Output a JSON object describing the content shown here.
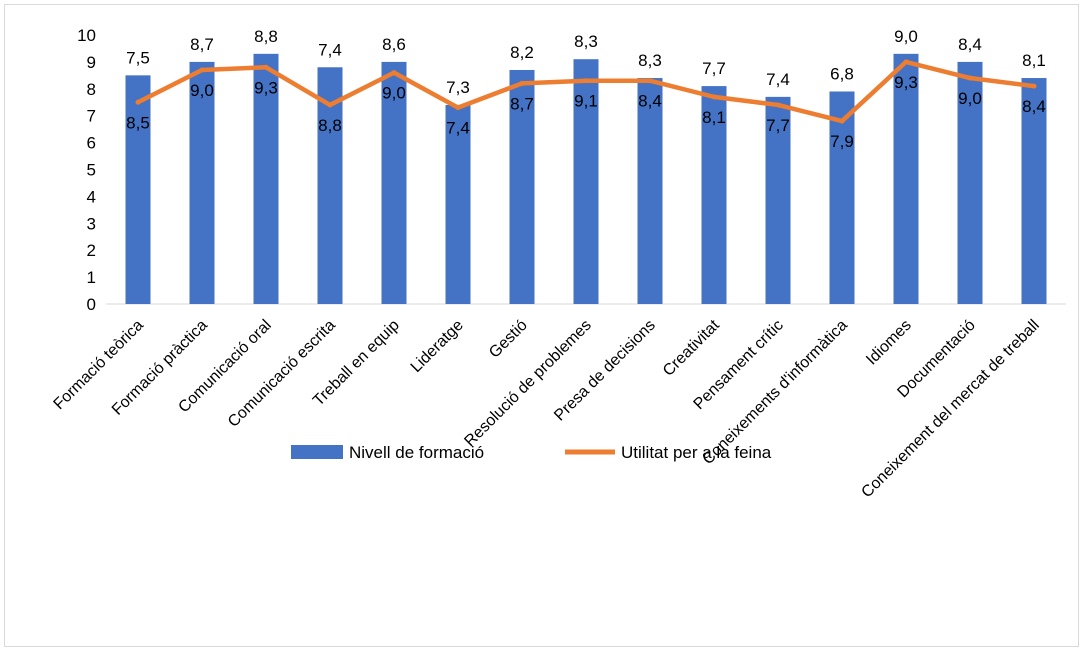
{
  "chart_data": {
    "type": "bar",
    "categories": [
      "Formació teòrica",
      "Formació pràctica",
      "Comunicació oral",
      "Comunicació escrita",
      "Treball en equip",
      "Lideratge",
      "Gestió",
      "Resolució de problemes",
      "Presa de decisions",
      "Creativitat",
      "Pensament crític",
      "Coneixements d'informàtica",
      "Idiomes",
      "Documentació",
      "Coneixement del mercat de treball"
    ],
    "series": [
      {
        "name": "Nivell de formació",
        "type": "bar",
        "color": "#4472c4",
        "values": [
          8.5,
          9.0,
          9.3,
          8.8,
          9.0,
          7.4,
          8.7,
          9.1,
          8.4,
          8.1,
          7.7,
          7.9,
          9.3,
          9.0,
          8.4
        ],
        "labels": [
          "8,5",
          "9,0",
          "9,3",
          "8,8",
          "9,0",
          "7,4",
          "8,7",
          "9,1",
          "8,4",
          "8,1",
          "7,7",
          "7,9",
          "9,3",
          "9,0",
          "8,4"
        ]
      },
      {
        "name": "Utilitat per a la feina",
        "type": "line",
        "color": "#ed7d31",
        "values": [
          7.5,
          8.7,
          8.8,
          7.4,
          8.6,
          7.3,
          8.2,
          8.3,
          8.3,
          7.7,
          7.4,
          6.8,
          9.0,
          8.4,
          8.1
        ],
        "labels": [
          "7,5",
          "8,7",
          "8,8",
          "7,4",
          "8,6",
          "7,3",
          "8,2",
          "8,3",
          "8,3",
          "7,7",
          "7,4",
          "6,8",
          "9,0",
          "8,4",
          "8,1"
        ]
      }
    ],
    "yticks": [
      "0",
      "1",
      "2",
      "3",
      "4",
      "5",
      "6",
      "7",
      "8",
      "9",
      "10"
    ],
    "ylim": [
      0,
      10
    ],
    "title": "",
    "xlabel": "",
    "ylabel": "",
    "grid": false,
    "legend_position": "bottom"
  }
}
